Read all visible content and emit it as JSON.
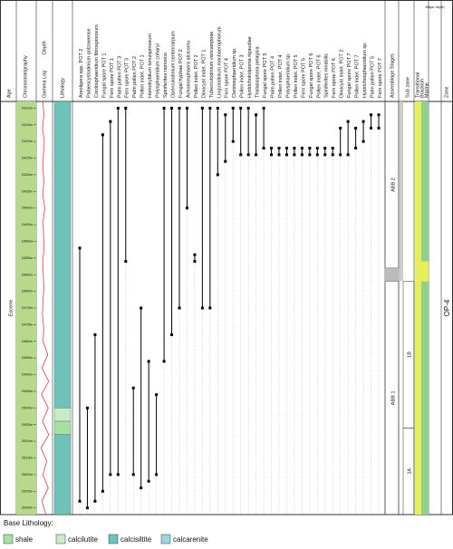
{
  "columns": {
    "age": "Age",
    "chrono": "Chronostratigraphy",
    "depth": "Depth",
    "gamma": "Gamma Log",
    "litho": "Lithology"
  },
  "chrono_unit": "Eocene",
  "depth": {
    "ylim": [
      2408,
      2532
    ],
    "ticks": [
      {
        "value": 2410,
        "label": "2410m"
      },
      {
        "value": 2415,
        "label": "2415m"
      },
      {
        "value": 2420,
        "label": "2420m"
      },
      {
        "value": 2425,
        "label": "2425m"
      },
      {
        "value": 2430,
        "label": "2430m"
      },
      {
        "value": 2435,
        "label": "2435m"
      },
      {
        "value": 2440,
        "label": "2440m"
      },
      {
        "value": 2445,
        "label": "2445m"
      },
      {
        "value": 2450,
        "label": "2450m"
      },
      {
        "value": 2455,
        "label": "2455m"
      },
      {
        "value": 2460,
        "label": "2460m"
      },
      {
        "value": 2465,
        "label": "2465m"
      },
      {
        "value": 2470,
        "label": "2470m"
      },
      {
        "value": 2475,
        "label": "2475m"
      },
      {
        "value": 2480,
        "label": "2480m"
      },
      {
        "value": 2485,
        "label": "2485m"
      },
      {
        "value": 2490,
        "label": "2490m"
      },
      {
        "value": 2495,
        "label": "2495m"
      },
      {
        "value": 2500,
        "label": "2500m"
      },
      {
        "value": 2505,
        "label": "2505m"
      },
      {
        "value": 2510,
        "label": "2510m"
      },
      {
        "value": 2515,
        "label": "2515m"
      },
      {
        "value": 2520,
        "label": "2520m"
      },
      {
        "value": 2525,
        "label": "2525m"
      },
      {
        "value": 2530,
        "label": "2530m"
      }
    ]
  },
  "gamma": {
    "xlim": [
      0,
      150
    ],
    "color": "#e02020",
    "depths": [
      2408,
      2412,
      2416,
      2420,
      2424,
      2428,
      2432,
      2436,
      2440,
      2444,
      2448,
      2452,
      2456,
      2460,
      2464,
      2468,
      2472,
      2476,
      2480,
      2484,
      2488,
      2492,
      2496,
      2500,
      2504,
      2508,
      2512,
      2516,
      2520,
      2524,
      2528,
      2532
    ],
    "values": [
      60,
      70,
      55,
      75,
      65,
      60,
      70,
      58,
      80,
      62,
      66,
      72,
      58,
      64,
      70,
      60,
      55,
      68,
      62,
      110,
      50,
      120,
      45,
      115,
      55,
      120,
      40,
      100,
      60,
      115,
      50,
      90
    ]
  },
  "lithology": [
    {
      "top": 2408,
      "bottom": 2500,
      "type": "calcisiltite"
    },
    {
      "top": 2500,
      "bottom": 2504,
      "type": "calcilutite"
    },
    {
      "top": 2504,
      "bottom": 2508,
      "type": "shale"
    },
    {
      "top": 2508,
      "bottom": 2532,
      "type": "calcisiltite"
    }
  ],
  "taxa": [
    {
      "name": "Areoligera spp. POT 2",
      "top": 2452,
      "bottom": 2528
    },
    {
      "name": "Palaeocystodinium golzowense",
      "top": 2500,
      "bottom": 2530
    },
    {
      "name": "Cordosphaeridium fibrospinosum",
      "top": 2478,
      "bottom": 2528
    },
    {
      "name": "Fungal spore POT 1",
      "top": 2418,
      "bottom": 2525
    },
    {
      "name": "Fern spore POT 1",
      "top": 2414,
      "bottom": 2520
    },
    {
      "name": "Palm pollen POT 3",
      "top": 2410,
      "bottom": 2520
    },
    {
      "name": "Fern spore POT 3",
      "top": 2410,
      "bottom": 2456
    },
    {
      "name": "Palm pollen POT 2",
      "top": 2494,
      "bottom": 2520
    },
    {
      "name": "Pollen indet. POT 1",
      "top": 2470,
      "bottom": 2524
    },
    {
      "name": "Homotryblium tenuispinosum",
      "top": 2486,
      "bottom": 2522
    },
    {
      "name": "Polysphaeridium zoharyi",
      "top": 2496,
      "bottom": 2520
    },
    {
      "name": "Spiniferites ramosus",
      "top": 2410,
      "bottom": 2486
    },
    {
      "name": "Operculodinium centrocarpum",
      "top": 2410,
      "bottom": 2478
    },
    {
      "name": "Fungal hyphae POT 2",
      "top": 2410,
      "bottom": 2470
    },
    {
      "name": "Achomosphaera alcicornu",
      "top": 2410,
      "bottom": 2440
    },
    {
      "name": "Pollen indet. POT 2",
      "top": 2454,
      "bottom": 2456
    },
    {
      "name": "Dinocyst indet. POT 1",
      "top": 2410,
      "bottom": 2470
    },
    {
      "name": "Tuberculodinium vancampoae",
      "top": 2410,
      "bottom": 2470
    },
    {
      "name": "Lingulodinium machaerophorum",
      "top": 2410,
      "bottom": 2430
    },
    {
      "name": "Fern spore POT 4",
      "top": 2412,
      "bottom": 2426
    },
    {
      "name": "Cleistosphaeridium sp.",
      "top": 2410,
      "bottom": 2420
    },
    {
      "name": "Pollen indet. POT 3",
      "top": 2410,
      "bottom": 2424
    },
    {
      "name": "Hystrichokolpoma rigaudiae",
      "top": 2410,
      "bottom": 2424
    },
    {
      "name": "Thalassiphora pelagica",
      "top": 2412,
      "bottom": 2424
    },
    {
      "name": "Fungal spore POT 5",
      "top": 2410,
      "bottom": 2422
    },
    {
      "name": "Palm pollen POT 4",
      "top": 2422,
      "bottom": 2424
    },
    {
      "name": "Pollen indet. POT 4",
      "top": 2422,
      "bottom": 2424
    },
    {
      "name": "Polysphaeridium sp.",
      "top": 2422,
      "bottom": 2424
    },
    {
      "name": "Pollen indet. POT 5",
      "top": 2422,
      "bottom": 2424
    },
    {
      "name": "Fern spore POT 5",
      "top": 2422,
      "bottom": 2424
    },
    {
      "name": "Fungal spore POT 6",
      "top": 2422,
      "bottom": 2424
    },
    {
      "name": "Pollen indet. POT 6",
      "top": 2422,
      "bottom": 2424
    },
    {
      "name": "Spiniferites mirabilis",
      "top": 2422,
      "bottom": 2424
    },
    {
      "name": "Fern spore POT 6",
      "top": 2422,
      "bottom": 2424
    },
    {
      "name": "Dinocyst indet. POT 2",
      "top": 2416,
      "bottom": 2424
    },
    {
      "name": "Fungal spore POT 7",
      "top": 2414,
      "bottom": 2424
    },
    {
      "name": "Pollen indet. POT 7",
      "top": 2416,
      "bottom": 2422
    },
    {
      "name": "Hystrichosphaeridium sp.",
      "top": 2414,
      "bottom": 2420
    },
    {
      "name": "Palm pollen POT 5",
      "top": 2412,
      "bottom": 2416
    },
    {
      "name": "Fern spore POT 7",
      "top": 2412,
      "bottom": 2416
    }
  ],
  "zones": {
    "header": "Assemblage Stages",
    "items": [
      {
        "label": "ABB 2",
        "top": 2408,
        "bottom": 2458
      },
      {
        "label": "ABB 1",
        "top": 2462,
        "bottom": 2532
      }
    ]
  },
  "subzones": {
    "header": "Sub zone",
    "items": [
      {
        "label": "1B",
        "top": 2462,
        "bottom": 2506
      },
      {
        "label": "1A",
        "top": 2506,
        "bottom": 2532
      }
    ]
  },
  "environment": {
    "header": "Major depth",
    "labels": [
      "Transitional",
      "Brackish",
      "Marine"
    ],
    "marine_to": 2456
  },
  "zone": {
    "header": "Zone",
    "label": "OP-4"
  },
  "legend": {
    "title": "Base Lithology:",
    "items": [
      {
        "type": "shale",
        "label": "shale",
        "color": "#a8e0a0"
      },
      {
        "type": "calcilutite",
        "label": "calcilutite",
        "color": "#c9ecc4"
      },
      {
        "type": "calcisiltite",
        "label": "calcisiltite",
        "color": "#6fc2b5"
      },
      {
        "type": "calcarenite",
        "label": "calcarenite",
        "color": "#9fd4d8"
      }
    ]
  }
}
